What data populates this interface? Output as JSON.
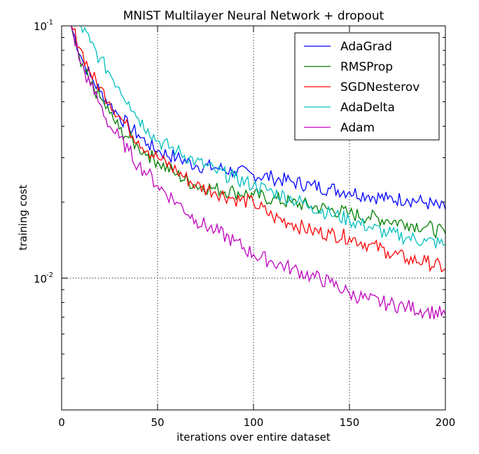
{
  "chart_data": {
    "type": "line",
    "title": "MNIST Multilayer Neural Network + dropout",
    "xlabel": "iterations over entire dataset",
    "ylabel": "training cost",
    "xlim": [
      0,
      200
    ],
    "ylim": [
      0.003,
      0.1
    ],
    "yscale": "log",
    "xticks": [
      "0",
      "50",
      "100",
      "150",
      "200"
    ],
    "yticks": [
      {
        "base": "10",
        "exp": "-1"
      },
      {
        "base": "10",
        "exp": "-2"
      }
    ],
    "grid": true,
    "legend_position": "top-right",
    "x": [
      5,
      10,
      15,
      20,
      25,
      30,
      35,
      40,
      45,
      50,
      60,
      70,
      80,
      90,
      100,
      110,
      120,
      130,
      140,
      150,
      160,
      170,
      180,
      190,
      200
    ],
    "series": [
      {
        "name": "AdaGrad",
        "color": "#0000ff",
        "values": [
          0.1,
          0.076,
          0.063,
          0.055,
          0.049,
          0.044,
          0.04,
          0.037,
          0.034,
          0.032,
          0.03,
          0.028,
          0.0274,
          0.0265,
          0.0257,
          0.025,
          0.0241,
          0.0233,
          0.0226,
          0.022,
          0.0213,
          0.0206,
          0.0206,
          0.0199,
          0.0187
        ]
      },
      {
        "name": "RMSProp",
        "color": "#008000",
        "values": [
          0.1,
          0.069,
          0.059,
          0.052,
          0.045,
          0.039,
          0.036,
          0.033,
          0.031,
          0.029,
          0.0257,
          0.0233,
          0.0226,
          0.022,
          0.0213,
          0.0206,
          0.0199,
          0.0193,
          0.0187,
          0.018,
          0.0175,
          0.017,
          0.0165,
          0.016,
          0.015
        ]
      },
      {
        "name": "SGDNesterov",
        "color": "#ff0000",
        "values": [
          0.1,
          0.081,
          0.065,
          0.057,
          0.05,
          0.044,
          0.039,
          0.035,
          0.032,
          0.03,
          0.0266,
          0.0233,
          0.022,
          0.0206,
          0.0199,
          0.0175,
          0.0165,
          0.0154,
          0.015,
          0.0145,
          0.0136,
          0.0127,
          0.0119,
          0.0116,
          0.0109
        ]
      },
      {
        "name": "AdaDelta",
        "color": "#00bfbf",
        "values": [
          0.13,
          0.1,
          0.086,
          0.074,
          0.065,
          0.057,
          0.05,
          0.043,
          0.039,
          0.035,
          0.032,
          0.029,
          0.0266,
          0.025,
          0.0233,
          0.022,
          0.0206,
          0.0193,
          0.018,
          0.017,
          0.016,
          0.015,
          0.0145,
          0.014,
          0.0136
        ]
      },
      {
        "name": "Adam",
        "color": "#bf00bf",
        "values": [
          0.1,
          0.071,
          0.058,
          0.049,
          0.04,
          0.036,
          0.032,
          0.028,
          0.026,
          0.0233,
          0.02,
          0.017,
          0.0154,
          0.014,
          0.0124,
          0.0116,
          0.0109,
          0.0102,
          0.0096,
          0.0087,
          0.0082,
          0.0079,
          0.0077,
          0.0074,
          0.0072
        ]
      }
    ]
  }
}
